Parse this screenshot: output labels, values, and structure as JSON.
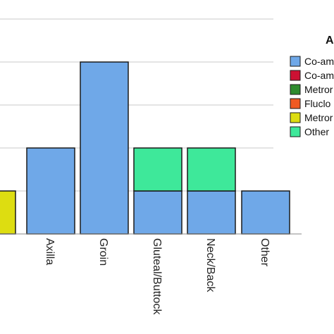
{
  "chart_data": {
    "type": "bar",
    "stacked": true,
    "categories": [
      "",
      "Axilla",
      "Groin",
      "Gluteal/Buttock",
      "Neck/Back",
      "Other"
    ],
    "series": [
      {
        "name": "Co-am",
        "color": "#6fa8e8",
        "values": [
          0,
          2,
          4,
          1,
          1,
          1
        ]
      },
      {
        "name": "Co-am",
        "color": "#cc1133",
        "values": [
          0,
          0,
          0,
          0,
          0,
          0
        ]
      },
      {
        "name": "Metror",
        "color": "#2e8b2e",
        "values": [
          0,
          0,
          0,
          0,
          0,
          0
        ]
      },
      {
        "name": "Fluclo",
        "color": "#f05a22",
        "values": [
          0,
          0,
          0,
          0,
          0,
          0
        ]
      },
      {
        "name": "Metror",
        "color": "#dddd11",
        "values": [
          1,
          0,
          0,
          0,
          0,
          0
        ]
      },
      {
        "name": "Other",
        "color": "#3ee89a",
        "values": [
          0,
          0,
          0,
          1,
          1,
          0
        ]
      }
    ],
    "ylim": [
      0,
      5
    ],
    "grid": true,
    "legend_title": "A",
    "legend_position": "right"
  }
}
